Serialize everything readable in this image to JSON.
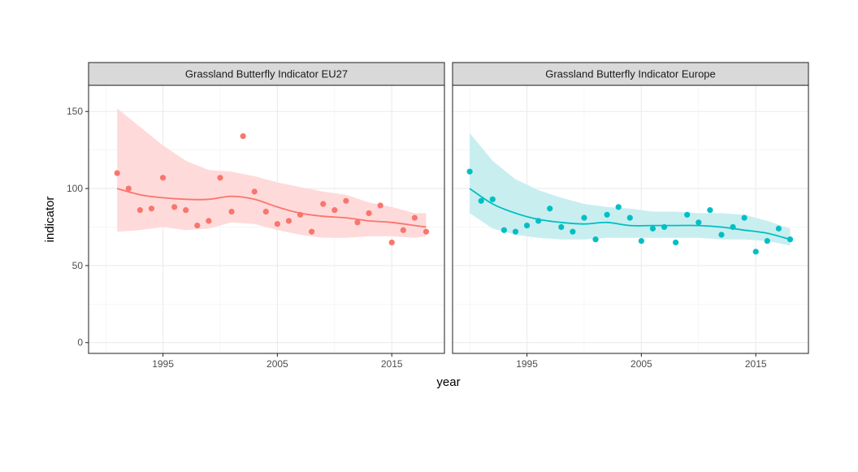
{
  "chart_data": {
    "type": "scatter",
    "xlabel": "year",
    "ylabel": "indicator",
    "xlim": [
      1988.5,
      2019.6
    ],
    "ylim": [
      -7,
      167
    ],
    "x_ticks": [
      1995,
      2005,
      2015
    ],
    "y_ticks": [
      0,
      50,
      100,
      150
    ],
    "grid": true,
    "legend": "none",
    "panels": [
      {
        "title": "Grassland Butterfly Indicator EU27",
        "color": "#F8766D",
        "band_color": "#FFDADA",
        "points": {
          "x": [
            1991,
            1992,
            1993,
            1994,
            1995,
            1996,
            1997,
            1998,
            1999,
            2000,
            2001,
            2002,
            2003,
            2004,
            2005,
            2006,
            2007,
            2008,
            2009,
            2010,
            2011,
            2012,
            2013,
            2014,
            2015,
            2016,
            2017,
            2018
          ],
          "y": [
            110,
            100,
            86,
            87,
            107,
            88,
            86,
            76,
            79,
            107,
            85,
            134,
            98,
            85,
            77,
            79,
            83,
            72,
            90,
            86,
            92,
            78,
            84,
            89,
            65,
            73,
            81,
            72
          ]
        },
        "smooth": {
          "x": [
            1991,
            1993,
            1995,
            1997,
            1999,
            2001,
            2003,
            2005,
            2007,
            2009,
            2011,
            2013,
            2015,
            2017,
            2018
          ],
          "y": [
            100,
            96,
            94,
            93,
            93,
            95,
            93,
            88,
            84,
            82,
            81,
            79,
            78,
            76,
            75
          ]
        },
        "band": {
          "x": [
            1991,
            1993,
            1995,
            1997,
            1999,
            2001,
            2003,
            2005,
            2007,
            2009,
            2011,
            2013,
            2015,
            2017,
            2018
          ],
          "upper": [
            152,
            140,
            128,
            118,
            112,
            111,
            108,
            104,
            101,
            98,
            96,
            91,
            88,
            84,
            84
          ],
          "lower": [
            72,
            73,
            75,
            73,
            74,
            78,
            77,
            73,
            70,
            68,
            68,
            69,
            69,
            68,
            69
          ]
        }
      },
      {
        "title": "Grassland Butterfly Indicator Europe",
        "color": "#00BFC4",
        "band_color": "#C9EEF0",
        "points": {
          "x": [
            1990,
            1991,
            1992,
            1993,
            1994,
            1995,
            1996,
            1997,
            1998,
            1999,
            2000,
            2001,
            2002,
            2003,
            2004,
            2005,
            2006,
            2007,
            2008,
            2009,
            2010,
            2011,
            2012,
            2013,
            2014,
            2015,
            2016,
            2017,
            2018
          ],
          "y": [
            111,
            92,
            93,
            73,
            72,
            76,
            79,
            87,
            75,
            72,
            81,
            67,
            83,
            88,
            81,
            66,
            74,
            75,
            65,
            83,
            78,
            86,
            70,
            75,
            81,
            59,
            66,
            74,
            67
          ]
        },
        "smooth": {
          "x": [
            1990,
            1992,
            1994,
            1996,
            1998,
            2000,
            2002,
            2004,
            2006,
            2008,
            2010,
            2012,
            2014,
            2016,
            2018
          ],
          "y": [
            100,
            90,
            84,
            80,
            78,
            77,
            78,
            76,
            76,
            76,
            76,
            75,
            73,
            71,
            67
          ]
        },
        "band": {
          "x": [
            1990,
            1992,
            1994,
            1996,
            1998,
            2000,
            2002,
            2004,
            2006,
            2008,
            2010,
            2012,
            2014,
            2016,
            2018
          ],
          "upper": [
            136,
            118,
            106,
            99,
            94,
            90,
            88,
            87,
            85,
            85,
            84,
            84,
            83,
            79,
            74
          ],
          "lower": [
            84,
            74,
            70,
            68,
            67,
            67,
            68,
            68,
            68,
            68,
            68,
            67,
            67,
            66,
            63
          ]
        }
      }
    ]
  }
}
